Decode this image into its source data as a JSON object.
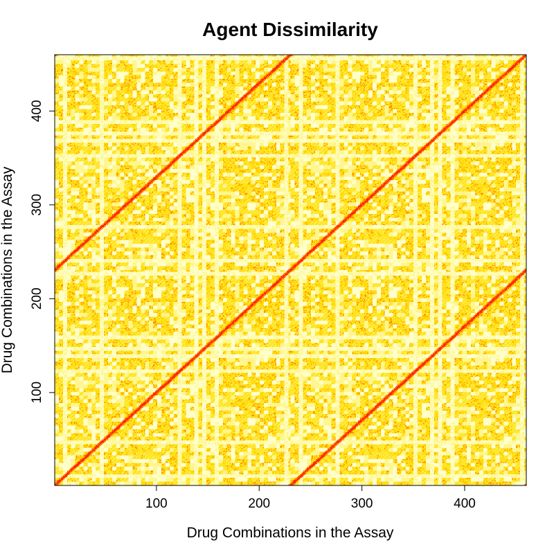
{
  "chart_data": {
    "type": "heatmap",
    "title": "Agent Dissimilarity",
    "xlabel": "Drug Combinations in the Assay",
    "ylabel": "Drug Combinations in the Assay",
    "xlim": [
      1,
      460
    ],
    "ylim": [
      1,
      460
    ],
    "x_ticks": [
      100,
      200,
      300,
      400
    ],
    "y_ticks": [
      100,
      200,
      300,
      400
    ],
    "grid": false,
    "legend": "none",
    "n_agents": 460,
    "period": 230,
    "block_size": 4,
    "color_scale": [
      "#ff0000",
      "#ff4500",
      "#ff8c00",
      "#ffd700",
      "#ffec42",
      "#fff68f",
      "#ffffcc"
    ],
    "scale_note": "red = low dissimilarity, light yellow = high dissimilarity",
    "diagonals": [
      "y = x",
      "y = x + 230",
      "y = x - 230"
    ]
  }
}
